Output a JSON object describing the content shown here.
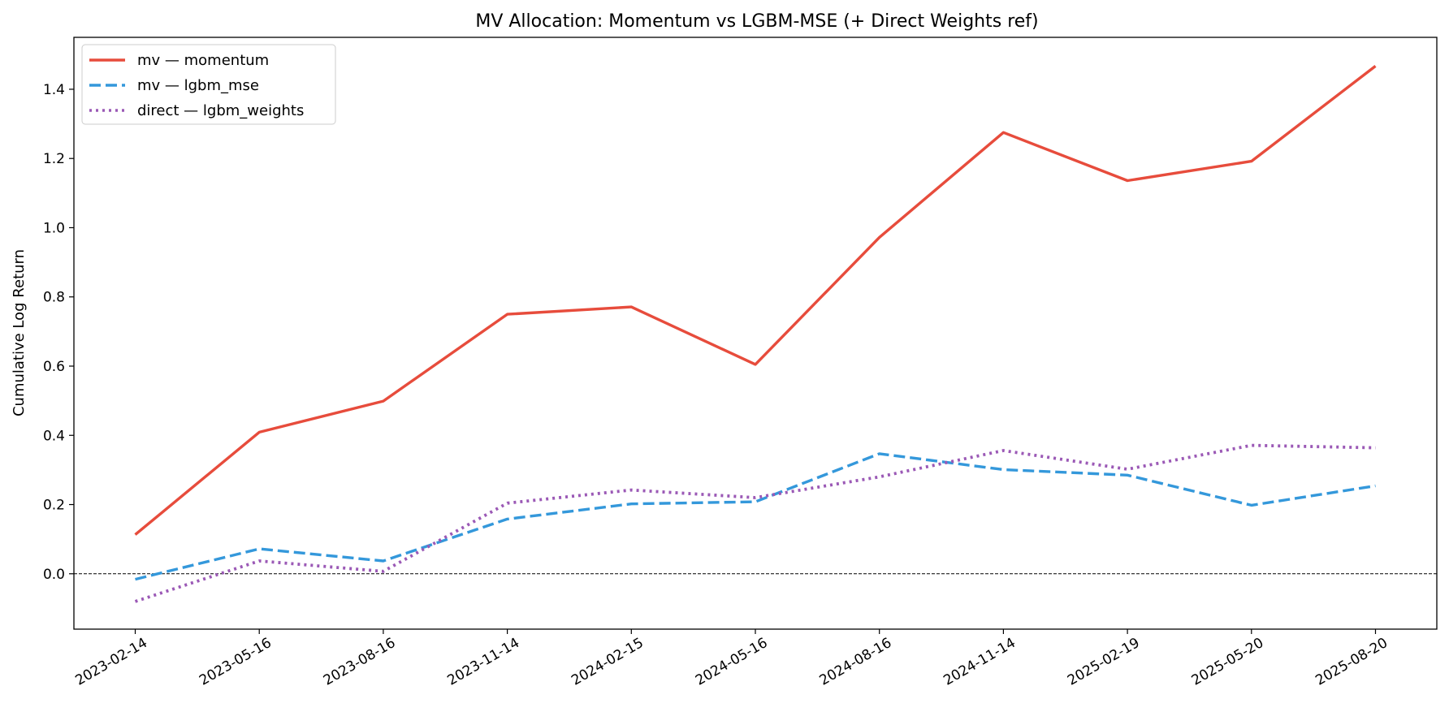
{
  "chart_data": {
    "type": "line",
    "title": "MV Allocation: Momentum vs LGBM-MSE (+ Direct Weights ref)",
    "xlabel": "",
    "ylabel": "Cumulative Log Return",
    "x": [
      "2023-02-14",
      "2023-05-16",
      "2023-08-16",
      "2023-11-14",
      "2024-02-15",
      "2024-05-16",
      "2024-08-16",
      "2024-11-14",
      "2025-02-19",
      "2025-05-20",
      "2025-08-20"
    ],
    "ylim": [
      -0.16,
      1.55
    ],
    "yticks": [
      0.0,
      0.2,
      0.4,
      0.6,
      0.8,
      1.0,
      1.2,
      1.4
    ],
    "ytick_labels": [
      "0.0",
      "0.2",
      "0.4",
      "0.6",
      "0.8",
      "1.0",
      "1.2",
      "1.4"
    ],
    "grid": false,
    "legend_position": "top-left",
    "reference_line": {
      "y": 0.0,
      "style": "dashed",
      "color": "#000000"
    },
    "series": [
      {
        "name": "mv — momentum",
        "color": "#e74c3c",
        "style": "solid",
        "values": [
          0.113,
          0.409,
          0.499,
          0.75,
          0.771,
          0.605,
          0.972,
          1.275,
          1.136,
          1.192,
          1.467
        ]
      },
      {
        "name": "mv — lgbm_mse",
        "color": "#3498db",
        "style": "dashed",
        "values": [
          -0.016,
          0.072,
          0.037,
          0.158,
          0.202,
          0.208,
          0.347,
          0.301,
          0.285,
          0.198,
          0.254
        ]
      },
      {
        "name": "direct — lgbm_weights",
        "color": "#9b59b6",
        "style": "dotted",
        "values": [
          -0.08,
          0.037,
          0.007,
          0.204,
          0.242,
          0.22,
          0.28,
          0.356,
          0.302,
          0.371,
          0.364
        ]
      }
    ]
  }
}
